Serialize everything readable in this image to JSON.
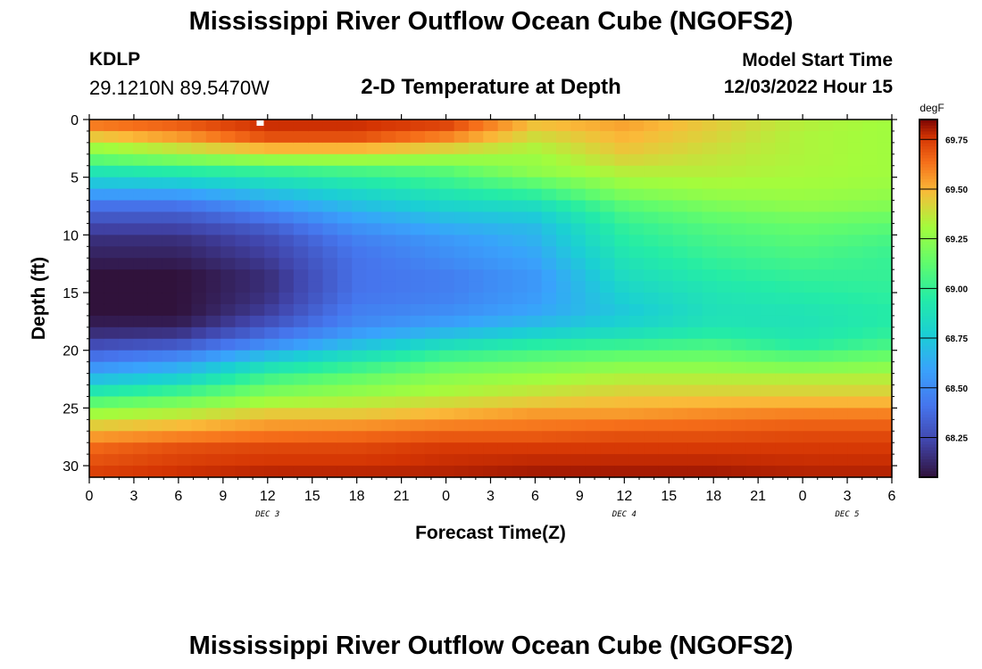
{
  "header": {
    "title": "Mississippi River Outflow Ocean Cube (NGOFS2)",
    "station_id": "KDLP",
    "station_coords": "29.1210N  89.5470W",
    "plot_title": "2-D Temperature at Depth",
    "model_start_label": "Model Start Time",
    "model_start_value": "12/03/2022 Hour 15"
  },
  "footer": {
    "title": "Mississippi River Outflow Ocean Cube (NGOFS2)"
  },
  "chart_data": {
    "type": "heatmap",
    "title": "2-D Temperature at Depth",
    "xlabel": "Forecast Time(Z)",
    "ylabel": "Depth (ft)",
    "x_ticks": [
      "0",
      "3",
      "6",
      "9",
      "12",
      "15",
      "18",
      "21",
      "0",
      "3",
      "6",
      "9",
      "12",
      "15",
      "18",
      "21",
      "0",
      "3",
      "6"
    ],
    "x_tick_hours": [
      0,
      3,
      6,
      9,
      12,
      15,
      18,
      21,
      24,
      27,
      30,
      33,
      36,
      39,
      42,
      45,
      48,
      51,
      54
    ],
    "xlim": [
      0,
      54
    ],
    "date_labels": [
      {
        "text": "DEC 3",
        "hour": 12
      },
      {
        "text": "DEC 4",
        "hour": 36
      },
      {
        "text": "DEC 5",
        "hour": 51
      }
    ],
    "y_ticks": [
      0,
      5,
      10,
      15,
      20,
      25,
      30
    ],
    "ylim": [
      0,
      31
    ],
    "y_inverted": true,
    "colorbar": {
      "unit": "degF",
      "ticks": [
        69.75,
        69.5,
        69.25,
        69.0,
        68.75,
        68.5,
        68.25
      ],
      "range": [
        68.05,
        69.85
      ],
      "colormap": "turbo"
    },
    "profile_depths": [
      0,
      1.5,
      3,
      4.5,
      6,
      7.5,
      9,
      10.5,
      12,
      13.5,
      15,
      16.5,
      18,
      19.5,
      21,
      22.5,
      24,
      25.5,
      27,
      28.5,
      31
    ],
    "profile_hours": [
      0,
      6,
      12,
      18,
      24,
      30,
      36,
      42,
      48,
      54
    ],
    "temperature_profiles": [
      [
        69.68,
        69.45,
        69.2,
        68.9,
        68.65,
        68.4,
        68.25,
        68.15,
        68.1,
        68.05,
        68.05,
        68.05,
        68.1,
        68.25,
        68.45,
        68.7,
        69.0,
        69.3,
        69.5,
        69.65,
        69.75
      ],
      [
        69.72,
        69.55,
        69.3,
        68.95,
        68.65,
        68.4,
        68.25,
        68.15,
        68.1,
        68.05,
        68.05,
        68.05,
        68.1,
        68.3,
        68.55,
        68.8,
        69.1,
        69.35,
        69.55,
        69.7,
        69.78
      ],
      [
        69.8,
        69.7,
        69.4,
        69.0,
        68.75,
        68.55,
        68.35,
        68.25,
        68.2,
        68.15,
        68.15,
        68.2,
        68.3,
        68.5,
        68.8,
        69.05,
        69.25,
        69.45,
        69.6,
        69.72,
        69.8
      ],
      [
        69.8,
        69.7,
        69.4,
        69.05,
        68.85,
        68.7,
        68.55,
        68.45,
        68.4,
        68.4,
        68.4,
        68.45,
        68.5,
        68.7,
        68.95,
        69.15,
        69.3,
        69.45,
        69.62,
        69.72,
        69.8
      ],
      [
        69.78,
        69.6,
        69.35,
        69.1,
        68.95,
        68.8,
        68.65,
        68.55,
        68.5,
        68.45,
        68.45,
        68.5,
        68.6,
        68.85,
        69.1,
        69.25,
        69.35,
        69.5,
        69.65,
        69.75,
        69.8
      ],
      [
        69.5,
        69.4,
        69.3,
        69.25,
        69.05,
        68.85,
        68.7,
        68.65,
        68.6,
        68.55,
        68.55,
        68.6,
        68.7,
        68.95,
        69.15,
        69.3,
        69.4,
        69.55,
        69.65,
        69.75,
        69.82
      ],
      [
        69.55,
        69.5,
        69.45,
        69.35,
        69.25,
        69.1,
        69.0,
        68.95,
        68.9,
        68.85,
        68.8,
        68.75,
        68.8,
        69.0,
        69.2,
        69.35,
        69.45,
        69.55,
        69.68,
        69.75,
        69.82
      ],
      [
        69.45,
        69.42,
        69.38,
        69.35,
        69.3,
        69.2,
        69.1,
        69.05,
        69.0,
        68.95,
        68.9,
        68.88,
        68.9,
        69.05,
        69.2,
        69.35,
        69.45,
        69.58,
        69.68,
        69.75,
        69.82
      ],
      [
        69.35,
        69.33,
        69.33,
        69.32,
        69.3,
        69.25,
        69.15,
        69.1,
        69.05,
        69.0,
        68.95,
        68.9,
        68.88,
        68.95,
        69.15,
        69.35,
        69.45,
        69.6,
        69.7,
        69.75,
        69.8
      ],
      [
        69.3,
        69.3,
        69.3,
        69.3,
        69.28,
        69.22,
        69.12,
        69.05,
        69.0,
        69.0,
        68.98,
        68.95,
        68.95,
        69.05,
        69.2,
        69.35,
        69.45,
        69.6,
        69.7,
        69.75,
        69.8
      ]
    ],
    "marker": {
      "hour": 11.5,
      "depth": 0.2
    }
  }
}
